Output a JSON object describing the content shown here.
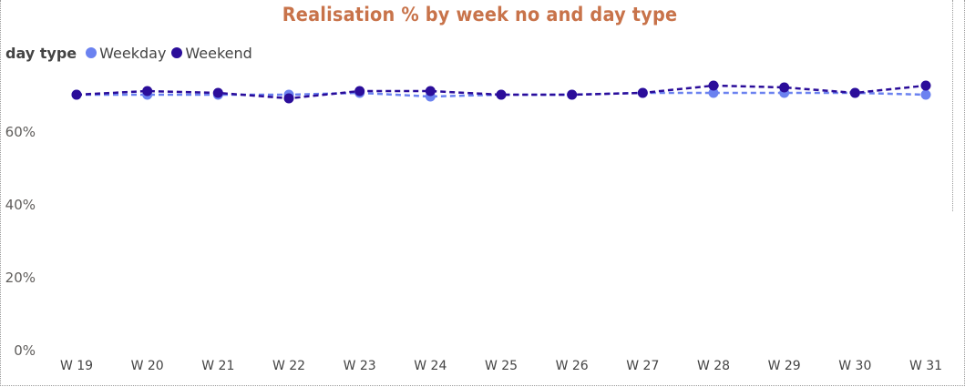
{
  "colors": {
    "weekday": "#6B82F0",
    "weekend": "#2B0D9A",
    "title": "#C8734A"
  },
  "chart_data": {
    "type": "line",
    "title": "Realisation % by week no and day type",
    "legend_title": "day type",
    "legend_position": "top-left",
    "categories": [
      "W 19",
      "W 20",
      "W 21",
      "W 22",
      "W 23",
      "W 24",
      "W 25",
      "W 26",
      "W 27",
      "W 28",
      "W 29",
      "W 30",
      "W 31"
    ],
    "y_ticks": [
      "0%",
      "20%",
      "40%",
      "60%"
    ],
    "ylim": [
      0,
      0.8
    ],
    "grid": false,
    "series": [
      {
        "name": "Weekday",
        "color": "#6B82F0",
        "style": "dashed",
        "values": [
          0.7,
          0.7,
          0.7,
          0.7,
          0.705,
          0.695,
          0.7,
          0.7,
          0.705,
          0.705,
          0.705,
          0.705,
          0.7
        ]
      },
      {
        "name": "Weekend",
        "color": "#2B0D9A",
        "style": "dashed",
        "values": [
          0.7,
          0.71,
          0.705,
          0.69,
          0.71,
          0.71,
          0.7,
          0.7,
          0.705,
          0.725,
          0.72,
          0.705,
          0.725
        ]
      }
    ]
  }
}
